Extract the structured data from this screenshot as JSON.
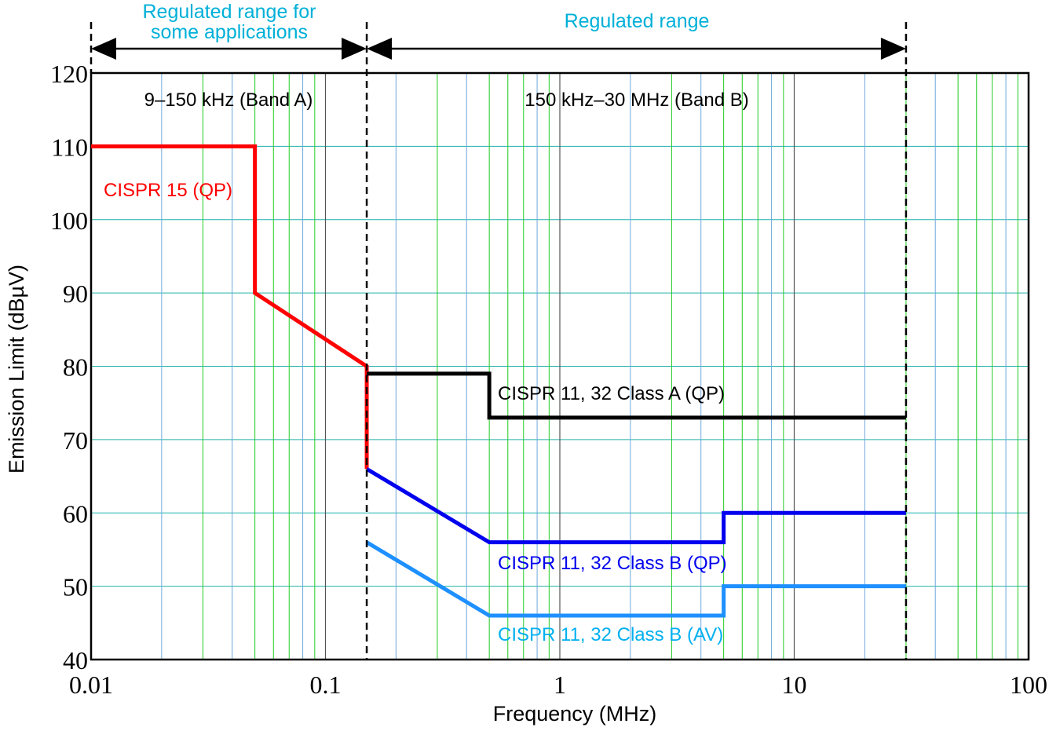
{
  "chart_data": {
    "type": "line",
    "xlabel": "Frequency (MHz)",
    "ylabel": "Emission Limit (dBµV)",
    "xscale": "log",
    "xlim": [
      0.01,
      100
    ],
    "ylim": [
      40,
      120
    ],
    "grid": true,
    "x_ticks": [
      {
        "v": 0.01,
        "label": "0.01"
      },
      {
        "v": 0.1,
        "label": "0.1"
      },
      {
        "v": 1,
        "label": "1"
      },
      {
        "v": 10,
        "label": "10"
      },
      {
        "v": 100,
        "label": "100"
      }
    ],
    "y_ticks": [
      40,
      50,
      60,
      70,
      80,
      90,
      100,
      110,
      120
    ],
    "series": [
      {
        "name": "CISPR 15 (QP)",
        "color": "#ff0000",
        "x": [
          0.01,
          0.05,
          0.05,
          0.15,
          0.15
        ],
        "y": [
          110,
          110,
          90,
          80,
          66
        ]
      },
      {
        "name": "CISPR 11, 32 Class A (QP)",
        "color": "#000000",
        "x": [
          0.15,
          0.5,
          0.5,
          30
        ],
        "y": [
          79,
          79,
          73,
          73
        ]
      },
      {
        "name": "CISPR 11, 32 Class B (QP)",
        "color": "#0000ee",
        "x": [
          0.15,
          0.5,
          5,
          5,
          30
        ],
        "y": [
          66,
          56,
          56,
          60,
          60
        ]
      },
      {
        "name": "CISPR 11, 32 Class B (AV)",
        "color": "#1e90ff",
        "x": [
          0.15,
          0.5,
          5,
          5,
          30
        ],
        "y": [
          56,
          46,
          46,
          50,
          50
        ]
      }
    ],
    "annotations": {
      "band_a": "9–150 kHz (Band A)",
      "band_b": "150 kHz–30 MHz (Band B)",
      "range_some": [
        "Regulated range for",
        "some applications"
      ],
      "range": "Regulated range",
      "boundaries_mhz": [
        0.15,
        30
      ]
    }
  },
  "colors": {
    "annotation": "#00b0d8",
    "grid_blue": "#6fa8dc",
    "grid_green": "#22cc22",
    "grid_h": "#20b2aa"
  }
}
